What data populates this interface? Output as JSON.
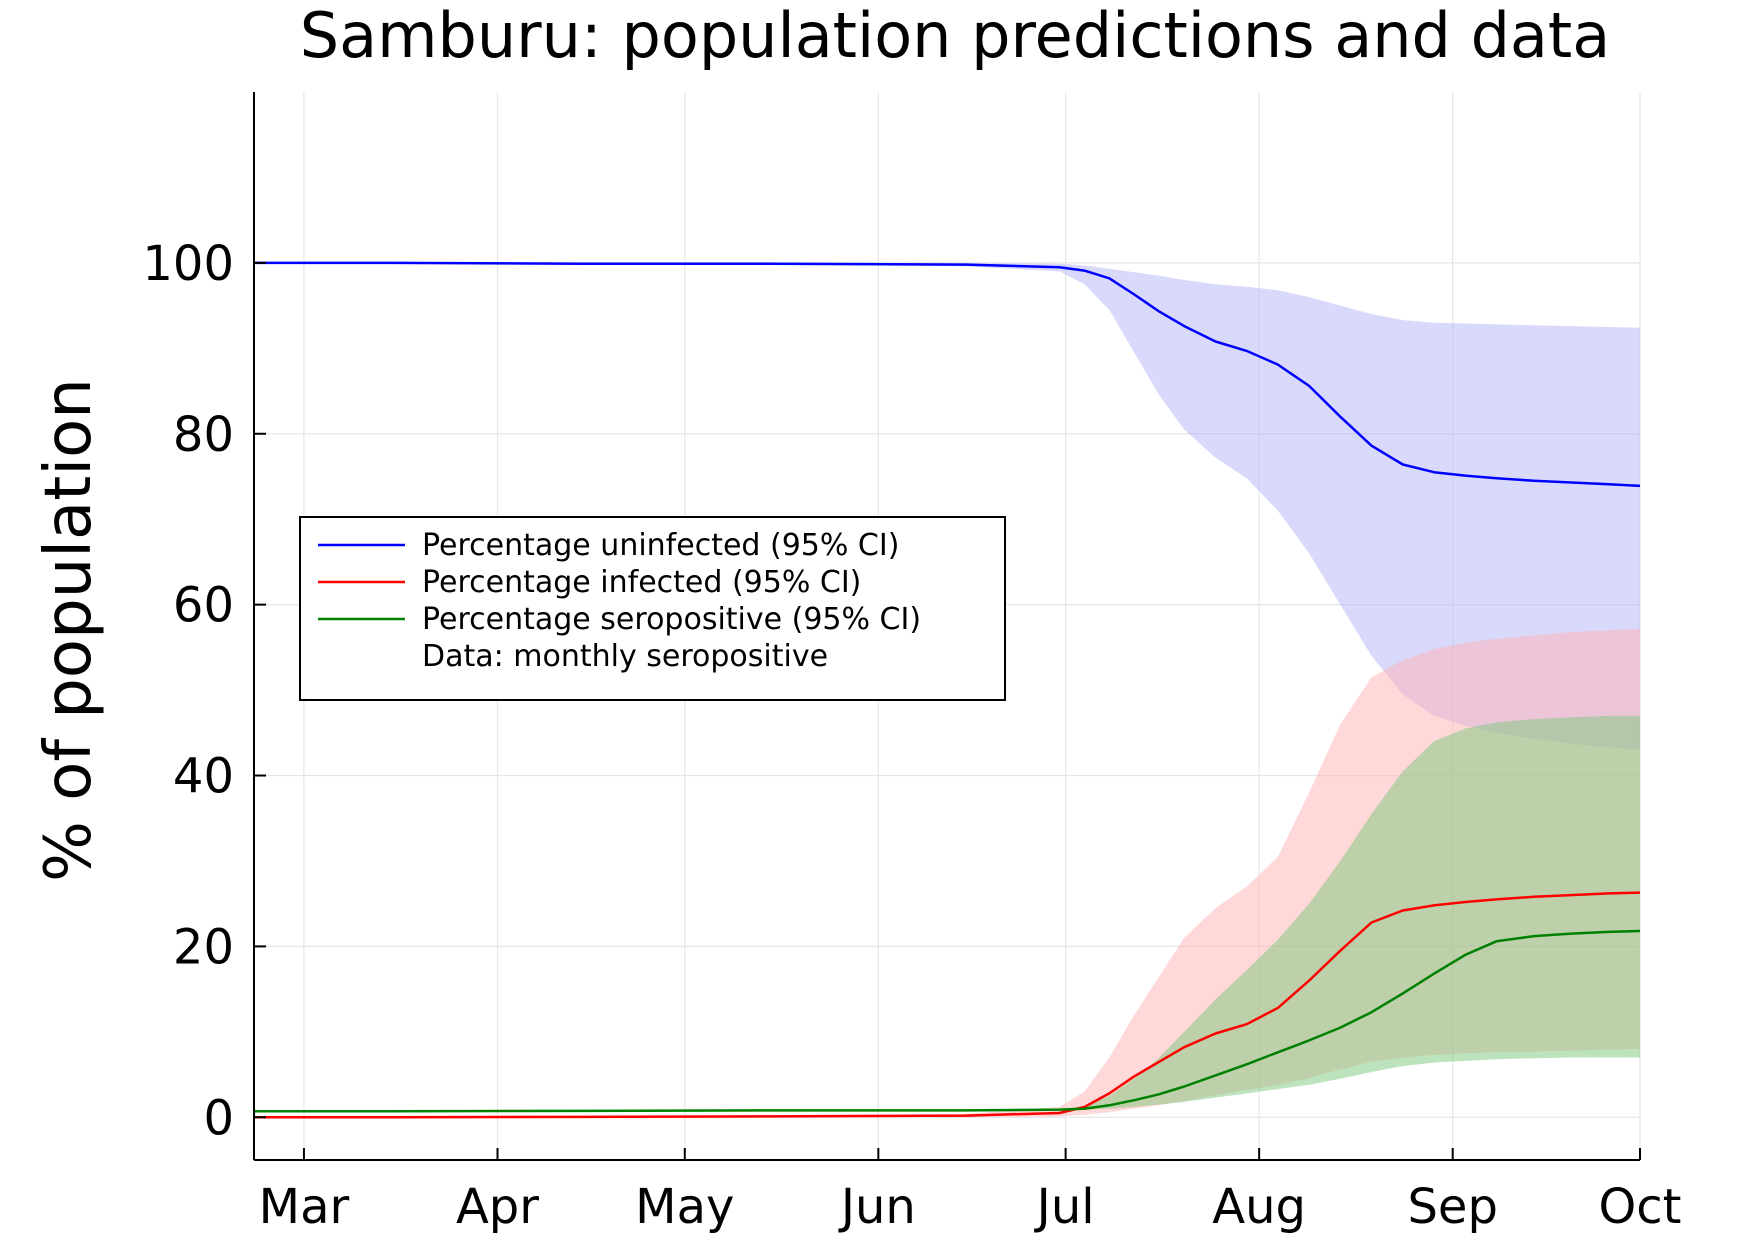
{
  "chart_data": {
    "type": "line",
    "title": "Samburu: population predictions and data",
    "xlabel": "",
    "ylabel": "% of population",
    "x_axis": {
      "type": "date",
      "range": [
        "2020-02-22",
        "2020-10-01"
      ]
    },
    "x_ticks": [
      {
        "label": "Mar",
        "date": "2020-03-01"
      },
      {
        "label": "Apr",
        "date": "2020-04-01"
      },
      {
        "label": "May",
        "date": "2020-05-01"
      },
      {
        "label": "Jun",
        "date": "2020-06-01"
      },
      {
        "label": "Jul",
        "date": "2020-07-01"
      },
      {
        "label": "Aug",
        "date": "2020-08-01"
      },
      {
        "label": "Sep",
        "date": "2020-09-01"
      },
      {
        "label": "Oct",
        "date": "2020-10-01"
      }
    ],
    "y_ticks": [
      0,
      20,
      40,
      60,
      80,
      100
    ],
    "ylim": [
      -5,
      120
    ],
    "grid": true,
    "legend_position": "center-left",
    "series": [
      {
        "name": "Percentage uninfected (95% CI)",
        "color": "#0000ff",
        "band_color": "#b3b3fa",
        "x": [
          "2020-02-22",
          "2020-03-15",
          "2020-04-15",
          "2020-05-15",
          "2020-06-15",
          "2020-06-30",
          "2020-07-04",
          "2020-07-08",
          "2020-07-12",
          "2020-07-16",
          "2020-07-20",
          "2020-07-25",
          "2020-07-30",
          "2020-08-04",
          "2020-08-09",
          "2020-08-14",
          "2020-08-19",
          "2020-08-24",
          "2020-08-29",
          "2020-09-03",
          "2020-09-08",
          "2020-09-14",
          "2020-09-20",
          "2020-09-26",
          "2020-10-01"
        ],
        "y": [
          100,
          100,
          99.9,
          99.9,
          99.8,
          99.5,
          99.1,
          98.2,
          96.3,
          94.3,
          92.6,
          90.8,
          89.7,
          88.1,
          85.6,
          82.0,
          78.6,
          76.4,
          75.5,
          75.1,
          74.8,
          74.5,
          74.3,
          74.1,
          73.9
        ],
        "lower": [
          100,
          99.9,
          99.9,
          99.8,
          99.6,
          99.0,
          97.5,
          94.5,
          89.5,
          84.5,
          80.5,
          77.2,
          74.8,
          71.0,
          66.0,
          60.0,
          54.0,
          49.5,
          47.0,
          45.8,
          45.0,
          44.3,
          43.7,
          43.3,
          43.0
        ],
        "upper": [
          100,
          100,
          100,
          100,
          100,
          99.9,
          99.7,
          99.3,
          98.9,
          98.5,
          98.0,
          97.5,
          97.2,
          96.8,
          96.0,
          95.0,
          94.0,
          93.3,
          93.0,
          92.9,
          92.8,
          92.7,
          92.6,
          92.5,
          92.4
        ]
      },
      {
        "name": "Percentage infected (95% CI)",
        "color": "#ff0000",
        "band_color": "#ffb3b3",
        "x": [
          "2020-02-22",
          "2020-03-15",
          "2020-04-15",
          "2020-05-15",
          "2020-06-15",
          "2020-06-30",
          "2020-07-04",
          "2020-07-08",
          "2020-07-12",
          "2020-07-16",
          "2020-07-20",
          "2020-07-25",
          "2020-07-30",
          "2020-08-04",
          "2020-08-09",
          "2020-08-14",
          "2020-08-19",
          "2020-08-24",
          "2020-08-29",
          "2020-09-03",
          "2020-09-08",
          "2020-09-14",
          "2020-09-20",
          "2020-09-26",
          "2020-10-01"
        ],
        "y": [
          0,
          0,
          0.05,
          0.1,
          0.2,
          0.5,
          1.2,
          2.8,
          4.8,
          6.5,
          8.2,
          9.8,
          10.9,
          12.8,
          16.0,
          19.5,
          22.8,
          24.2,
          24.8,
          25.2,
          25.5,
          25.8,
          26.0,
          26.2,
          26.3
        ],
        "lower": [
          0,
          0,
          0,
          0,
          0,
          0.1,
          0.3,
          0.6,
          1.0,
          1.4,
          1.9,
          2.6,
          3.2,
          3.8,
          4.6,
          5.6,
          6.5,
          7.0,
          7.3,
          7.5,
          7.6,
          7.7,
          7.8,
          7.9,
          8.0
        ],
        "upper": [
          0,
          0,
          0.1,
          0.2,
          0.4,
          1.2,
          3.0,
          7.0,
          12.0,
          16.5,
          21.0,
          24.5,
          27.0,
          30.5,
          38.0,
          46.0,
          51.5,
          53.5,
          54.8,
          55.5,
          56.0,
          56.4,
          56.8,
          57.0,
          57.2
        ]
      },
      {
        "name": "Percentage seropositive (95% CI)",
        "color": "#008000",
        "band_color": "#7cc77c",
        "x": [
          "2020-02-22",
          "2020-03-15",
          "2020-04-15",
          "2020-05-15",
          "2020-06-15",
          "2020-06-30",
          "2020-07-04",
          "2020-07-08",
          "2020-07-12",
          "2020-07-16",
          "2020-07-20",
          "2020-07-25",
          "2020-07-30",
          "2020-08-04",
          "2020-08-09",
          "2020-08-14",
          "2020-08-19",
          "2020-08-24",
          "2020-08-29",
          "2020-09-03",
          "2020-09-08",
          "2020-09-14",
          "2020-09-20",
          "2020-09-26",
          "2020-10-01"
        ],
        "y": [
          0.7,
          0.7,
          0.75,
          0.8,
          0.8,
          0.9,
          1.0,
          1.4,
          2.0,
          2.7,
          3.6,
          4.9,
          6.2,
          7.6,
          9.0,
          10.5,
          12.3,
          14.5,
          16.8,
          19.0,
          20.6,
          21.2,
          21.5,
          21.7,
          21.8
        ],
        "lower": [
          0.7,
          0.7,
          0.7,
          0.75,
          0.8,
          0.85,
          0.9,
          1.0,
          1.2,
          1.5,
          1.8,
          2.3,
          2.8,
          3.3,
          3.8,
          4.5,
          5.3,
          6.0,
          6.4,
          6.6,
          6.8,
          6.9,
          7.0,
          7.0,
          7.0
        ],
        "upper": [
          0.7,
          0.7,
          0.8,
          0.8,
          0.9,
          1.0,
          1.3,
          2.5,
          4.5,
          7.0,
          10.0,
          13.8,
          17.2,
          20.8,
          25.0,
          30.0,
          35.5,
          40.5,
          44.0,
          45.5,
          46.2,
          46.6,
          46.8,
          47.0,
          47.0
        ]
      },
      {
        "name": "Data: monthly seropositive",
        "color": "#000000",
        "x": [],
        "y": []
      }
    ]
  }
}
